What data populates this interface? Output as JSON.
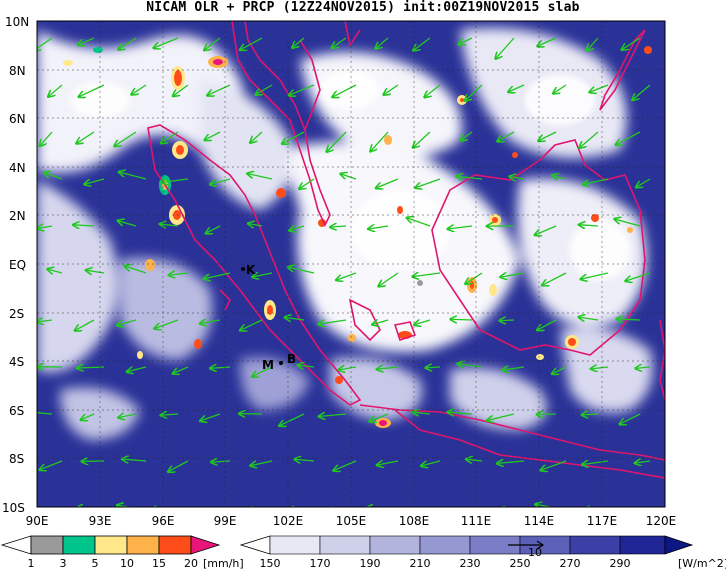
{
  "title": "NICAM OLR + PRCP (12Z24NOV2015) init:00Z19NOV2015 slab",
  "lat_labels": [
    "10N",
    "8N",
    "6N",
    "4N",
    "2N",
    "EQ",
    "2S",
    "4S",
    "6S",
    "8S",
    "10S"
  ],
  "lon_labels": [
    "90E",
    "93E",
    "96E",
    "99E",
    "102E",
    "105E",
    "108E",
    "111E",
    "114E",
    "117E",
    "120E"
  ],
  "place_labels": {
    "k": "K",
    "m": "M",
    "b": "B"
  },
  "precip_colorbar": {
    "ticks": [
      "1",
      "3",
      "5",
      "10",
      "15",
      "20"
    ],
    "unit": "[mm/h]",
    "colors": [
      "#9a9a9a",
      "#00c58a",
      "#ffe78a",
      "#ffb14a",
      "#ff4d1a",
      "#e8157a"
    ]
  },
  "olr_colorbar": {
    "ticks": [
      "150",
      "170",
      "190",
      "210",
      "230",
      "250",
      "270",
      "290"
    ],
    "unit": "[W/m^2]",
    "colors": [
      "#ffffff",
      "#e8e8f5",
      "#cfd0ea",
      "#b2b4de",
      "#9698d2",
      "#7b7ec6",
      "#5c60b8",
      "#3b40a6",
      "#1f2594",
      "#0c1784"
    ]
  },
  "vector_ref_label": "10",
  "colors": {
    "ocean_olr": "#2a3298",
    "coast": "#e0166e",
    "wind_vector": "#1fc81f"
  }
}
